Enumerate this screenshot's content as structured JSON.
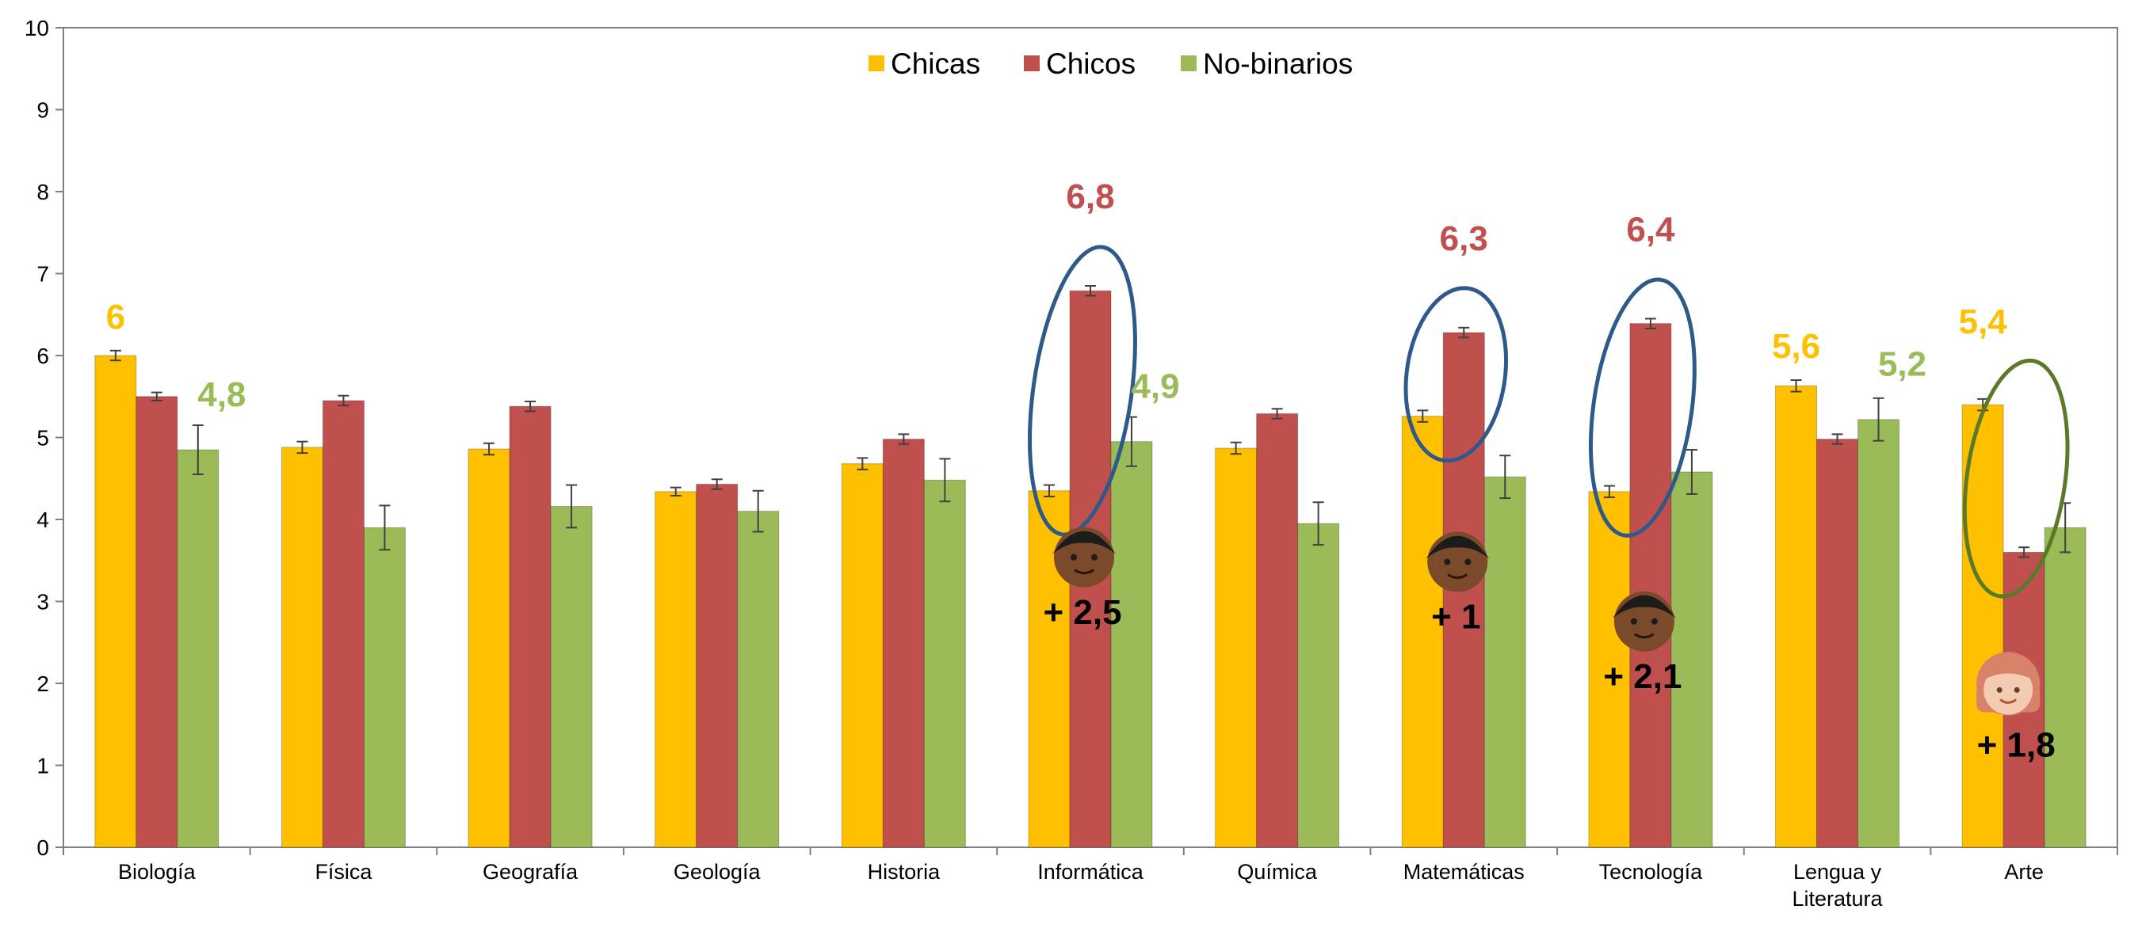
{
  "chart_data": {
    "type": "bar",
    "categories": [
      "Biología",
      "Física",
      "Geografía",
      "Geología",
      "Historia",
      "Informática",
      "Química",
      "Matemáticas",
      "Tecnología",
      "Lengua y Literatura",
      "Arte"
    ],
    "series": [
      {
        "name": "Chicas",
        "color": "#FFC000",
        "values": [
          6.0,
          4.88,
          4.86,
          4.34,
          4.68,
          4.35,
          4.87,
          5.26,
          4.34,
          5.63,
          5.4
        ],
        "errors": [
          0.06,
          0.07,
          0.07,
          0.05,
          0.07,
          0.07,
          0.07,
          0.07,
          0.07,
          0.07,
          0.07
        ]
      },
      {
        "name": "Chicos",
        "color": "#C0504D",
        "values": [
          5.5,
          5.45,
          5.38,
          4.43,
          4.98,
          6.79,
          5.29,
          6.28,
          6.39,
          4.98,
          3.6
        ],
        "errors": [
          0.05,
          0.06,
          0.06,
          0.06,
          0.06,
          0.06,
          0.06,
          0.06,
          0.06,
          0.06,
          0.06
        ]
      },
      {
        "name": "No-binarios",
        "color": "#9BBB59",
        "values": [
          4.85,
          3.9,
          4.16,
          4.1,
          4.48,
          4.95,
          3.95,
          4.52,
          4.58,
          5.22,
          3.9
        ],
        "errors": [
          0.3,
          0.27,
          0.26,
          0.25,
          0.26,
          0.3,
          0.26,
          0.26,
          0.27,
          0.26,
          0.3
        ]
      }
    ],
    "ylim": [
      0,
      10
    ],
    "yticks": [
      "0",
      "1",
      "2",
      "3",
      "4",
      "5",
      "6",
      "7",
      "8",
      "9",
      "10"
    ],
    "xlabel": "",
    "ylabel": "",
    "grid": false,
    "legend": "top-center",
    "annotations": {
      "value_labels": [
        {
          "text": "6",
          "category": 0,
          "series": 0,
          "color": "#FFC000"
        },
        {
          "text": "4,8",
          "category": 0,
          "series": 2,
          "color": "#9BBB59"
        },
        {
          "text": "6,8",
          "category": 5,
          "series": 1,
          "color": "#C0504D"
        },
        {
          "text": "4,9",
          "category": 5,
          "series": 2,
          "color": "#9BBB59"
        },
        {
          "text": "6,3",
          "category": 7,
          "series": 1,
          "color": "#C0504D"
        },
        {
          "text": "6,4",
          "category": 8,
          "series": 1,
          "color": "#C0504D"
        },
        {
          "text": "5,6",
          "category": 9,
          "series": 0,
          "color": "#FFC000"
        },
        {
          "text": "5,2",
          "category": 9,
          "series": 2,
          "color": "#9BBB59"
        },
        {
          "text": "5,4",
          "category": 10,
          "series": 0,
          "color": "#FFC000"
        }
      ],
      "differences": [
        {
          "text": "+ 2,5",
          "category": 5,
          "icon": "boy-face-icon"
        },
        {
          "text": "+ 1",
          "category": 7,
          "icon": "boy-face-icon"
        },
        {
          "text": "+ 2,1",
          "category": 8,
          "icon": "boy-face-icon"
        },
        {
          "text": "+ 1,8",
          "category": 10,
          "icon": "girl-face-icon"
        }
      ],
      "highlights": [
        {
          "category": 5,
          "color": "#2E5A8A"
        },
        {
          "category": 7,
          "color": "#2E5A8A"
        },
        {
          "category": 8,
          "color": "#2E5A8A"
        },
        {
          "category": 10,
          "color": "#5A7A2A"
        }
      ]
    }
  }
}
